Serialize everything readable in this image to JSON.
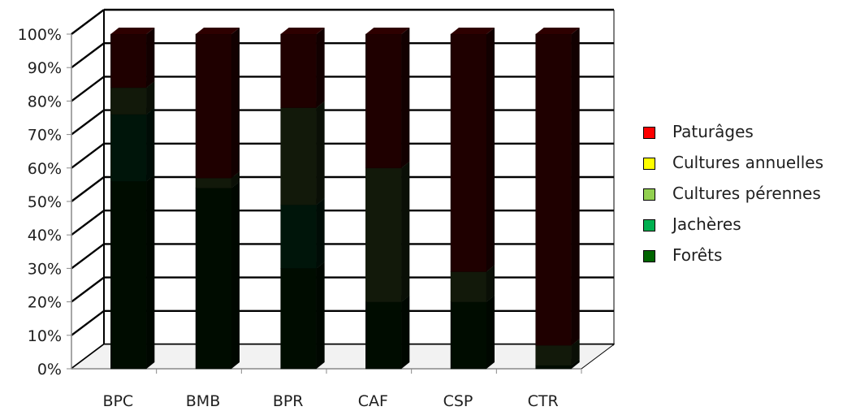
{
  "chart_data": {
    "type": "bar",
    "stacked": true,
    "percent": true,
    "three_d": true,
    "title": "",
    "xlabel": "",
    "ylabel": "",
    "ylim": [
      0,
      100
    ],
    "grid": true,
    "legend_position": "right",
    "y_tick_labels": [
      "0%",
      "10%",
      "20%",
      "30%",
      "40%",
      "50%",
      "60%",
      "70%",
      "80%",
      "90%",
      "100%"
    ],
    "categories": [
      "BPC",
      "BMB",
      "BPR",
      "CAF",
      "CSP",
      "CTR"
    ],
    "series": [
      {
        "name": "Forêts",
        "color": "#006400",
        "values": [
          56,
          54,
          30,
          20,
          20,
          1
        ]
      },
      {
        "name": "Jachères",
        "color": "#00b050",
        "values": [
          20,
          0,
          19,
          0,
          0,
          0
        ]
      },
      {
        "name": "Cultures pérennes",
        "color": "#92d050",
        "values": [
          8,
          3,
          29,
          40,
          9,
          6
        ]
      },
      {
        "name": "Cultures annuelles",
        "color": "#ffff00",
        "values": [
          0,
          0,
          0,
          0,
          0,
          0
        ]
      },
      {
        "name": "Paturâges",
        "color": "#ff0000",
        "values": [
          16,
          43,
          22,
          40,
          71,
          93
        ]
      }
    ]
  },
  "legend": {
    "items": [
      {
        "label": "Paturâges",
        "color": "#ff0000"
      },
      {
        "label": "Cultures annuelles",
        "color": "#ffff00"
      },
      {
        "label": "Cultures pérennes",
        "color": "#92d050"
      },
      {
        "label": "Jachères",
        "color": "#00b050"
      },
      {
        "label": "Forêts",
        "color": "#006400"
      }
    ]
  }
}
